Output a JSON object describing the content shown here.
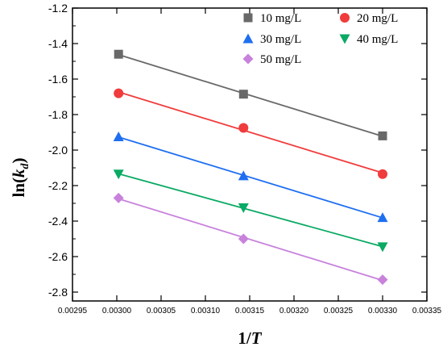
{
  "chart_data": {
    "type": "scatter",
    "title": "",
    "xlabel": {
      "main": "1/",
      "italic": "T"
    },
    "ylabel": {
      "main": "ln(",
      "italic": "k",
      "sub": "d",
      "end": ")"
    },
    "xlim": [
      0.00295,
      0.00335
    ],
    "ylim": [
      -2.85,
      -1.2
    ],
    "xticks": [
      "0.00295",
      "0.00300",
      "0.00305",
      "0.00310",
      "0.00315",
      "0.00320",
      "0.00325",
      "0.00330",
      "0.00335"
    ],
    "yticks": [
      "-1.2",
      "-1.4",
      "-1.6",
      "-1.8",
      "-2.0",
      "-2.2",
      "-2.4",
      "-2.6",
      "-2.8"
    ],
    "x": [
      0.003002,
      0.003143,
      0.0033
    ],
    "grid": false,
    "legend_position": "top-right",
    "series": [
      {
        "name": "10 mg/L",
        "marker": "square",
        "color": "#696969",
        "values": [
          -1.46,
          -1.685,
          -1.92
        ]
      },
      {
        "name": "20 mg/L",
        "marker": "circle",
        "color": "#f03c3c",
        "values": [
          -1.68,
          -1.875,
          -2.135
        ]
      },
      {
        "name": "30 mg/L",
        "marker": "triangle-up",
        "color": "#1e6ff0",
        "values": [
          -1.925,
          -2.145,
          -2.38
        ]
      },
      {
        "name": "40 mg/L",
        "marker": "triangle-down",
        "color": "#0aaa64",
        "values": [
          -2.135,
          -2.325,
          -2.545
        ]
      },
      {
        "name": "50 mg/L",
        "marker": "diamond",
        "color": "#c882dc",
        "values": [
          -2.27,
          -2.5,
          -2.73
        ]
      }
    ]
  }
}
